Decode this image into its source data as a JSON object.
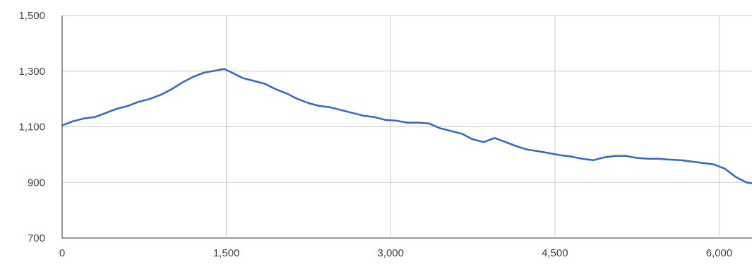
{
  "chart_data": {
    "type": "line",
    "title": "",
    "xlabel": "",
    "ylabel": "",
    "xlim": [
      0,
      6300
    ],
    "ylim": [
      700,
      1500
    ],
    "x_ticks": [
      0,
      1500,
      3000,
      4500,
      6000
    ],
    "y_ticks": [
      700,
      900,
      1100,
      1300,
      1500
    ],
    "x_tick_labels": [
      "0",
      "1,500",
      "3,000",
      "4,500",
      "6,000"
    ],
    "y_tick_labels": [
      "700",
      "900",
      "1,100",
      "1,300",
      "1,500"
    ],
    "grid": true,
    "legend": "none",
    "series": [
      {
        "color": "#3366cc",
        "points": [
          [
            0,
            1105
          ],
          [
            100,
            1120
          ],
          [
            200,
            1130
          ],
          [
            300,
            1135
          ],
          [
            400,
            1150
          ],
          [
            500,
            1165
          ],
          [
            600,
            1175
          ],
          [
            700,
            1190
          ],
          [
            800,
            1200
          ],
          [
            900,
            1215
          ],
          [
            1000,
            1235
          ],
          [
            1100,
            1260
          ],
          [
            1200,
            1280
          ],
          [
            1300,
            1295
          ],
          [
            1400,
            1302
          ],
          [
            1480,
            1308
          ],
          [
            1550,
            1295
          ],
          [
            1650,
            1275
          ],
          [
            1750,
            1265
          ],
          [
            1850,
            1255
          ],
          [
            1950,
            1235
          ],
          [
            2050,
            1220
          ],
          [
            2150,
            1200
          ],
          [
            2250,
            1185
          ],
          [
            2350,
            1175
          ],
          [
            2450,
            1170
          ],
          [
            2550,
            1160
          ],
          [
            2650,
            1150
          ],
          [
            2750,
            1140
          ],
          [
            2850,
            1135
          ],
          [
            2950,
            1125
          ],
          [
            3050,
            1122
          ],
          [
            3150,
            1115
          ],
          [
            3250,
            1115
          ],
          [
            3350,
            1112
          ],
          [
            3450,
            1095
          ],
          [
            3550,
            1085
          ],
          [
            3650,
            1075
          ],
          [
            3750,
            1055
          ],
          [
            3850,
            1045
          ],
          [
            3950,
            1060
          ],
          [
            4050,
            1045
          ],
          [
            4150,
            1030
          ],
          [
            4250,
            1018
          ],
          [
            4350,
            1012
          ],
          [
            4450,
            1005
          ],
          [
            4550,
            998
          ],
          [
            4650,
            993
          ],
          [
            4750,
            985
          ],
          [
            4850,
            980
          ],
          [
            4950,
            990
          ],
          [
            5050,
            995
          ],
          [
            5150,
            995
          ],
          [
            5250,
            988
          ],
          [
            5350,
            985
          ],
          [
            5450,
            985
          ],
          [
            5550,
            982
          ],
          [
            5650,
            980
          ],
          [
            5750,
            975
          ],
          [
            5850,
            970
          ],
          [
            5950,
            965
          ],
          [
            6050,
            950
          ],
          [
            6150,
            920
          ],
          [
            6250,
            900
          ],
          [
            6300,
            897
          ]
        ]
      }
    ]
  }
}
